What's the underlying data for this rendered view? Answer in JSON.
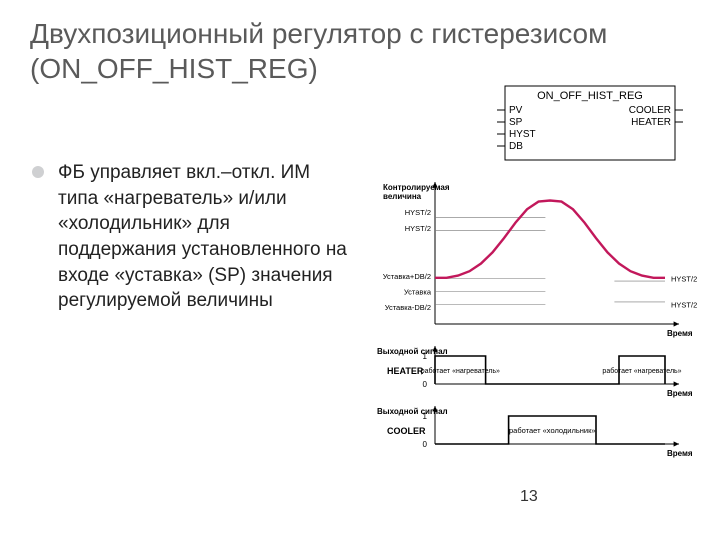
{
  "title": "Двухпозиционный регулятор с гистерезисом (ON_OFF_HIST_REG)",
  "bullet": "ФБ управляет  вкл.–откл. ИМ типа «нагреватель» и/или «холодильник» для поддержания установленного на входе «уставка» (SP) значения регулируемой величины",
  "page_number": "13",
  "fb_block": {
    "title": "ON_OFF_HIST_REG",
    "left_pins": [
      "PV",
      "SP",
      "HYST",
      "DB"
    ],
    "right_pins": [
      "COOLER",
      "HEATER"
    ]
  },
  "chart1": {
    "y_title": "Контролируемая величина",
    "y_labels_left": [
      "HYST/2",
      "HYST/2",
      "Уставка+DB/2",
      "Уставка",
      "Уставка-DB/2"
    ],
    "y_labels_right": [
      "HYST/2",
      "HYST/2"
    ],
    "x_label": "Время",
    "curve_color": "#c2185b",
    "curve": [
      [
        0,
        0.3
      ],
      [
        0.05,
        0.3
      ],
      [
        0.1,
        0.32
      ],
      [
        0.15,
        0.36
      ],
      [
        0.2,
        0.43
      ],
      [
        0.25,
        0.53
      ],
      [
        0.3,
        0.66
      ],
      [
        0.35,
        0.8
      ],
      [
        0.4,
        0.92
      ],
      [
        0.45,
        0.99
      ],
      [
        0.5,
        1.0
      ],
      [
        0.55,
        0.99
      ],
      [
        0.6,
        0.92
      ],
      [
        0.65,
        0.8
      ],
      [
        0.7,
        0.66
      ],
      [
        0.75,
        0.53
      ],
      [
        0.8,
        0.43
      ],
      [
        0.85,
        0.36
      ],
      [
        0.9,
        0.32
      ],
      [
        0.95,
        0.3
      ],
      [
        1.0,
        0.3
      ]
    ],
    "h_lines": [
      0.82,
      0.72,
      0.35,
      0.25,
      0.15
    ],
    "right_bracket_lines": [
      0.33,
      0.17
    ]
  },
  "chart2": {
    "y_title": "Выходной сигнал",
    "name": "HEATER",
    "caption": "работает «нагреватель»",
    "x_label": "Время",
    "segments": [
      [
        0.0,
        0.22
      ],
      [
        0.8,
        1.0
      ]
    ]
  },
  "chart3": {
    "y_title": "Выходной сигнал",
    "name": "COOLER",
    "caption": "работает «холодильник»",
    "x_label": "Время",
    "segments": [
      [
        0.32,
        0.7
      ]
    ]
  },
  "colors": {
    "axis": "#000000",
    "grid": "#777777",
    "text": "#000000",
    "fb_border": "#000000",
    "fb_bg": "#ffffff"
  }
}
